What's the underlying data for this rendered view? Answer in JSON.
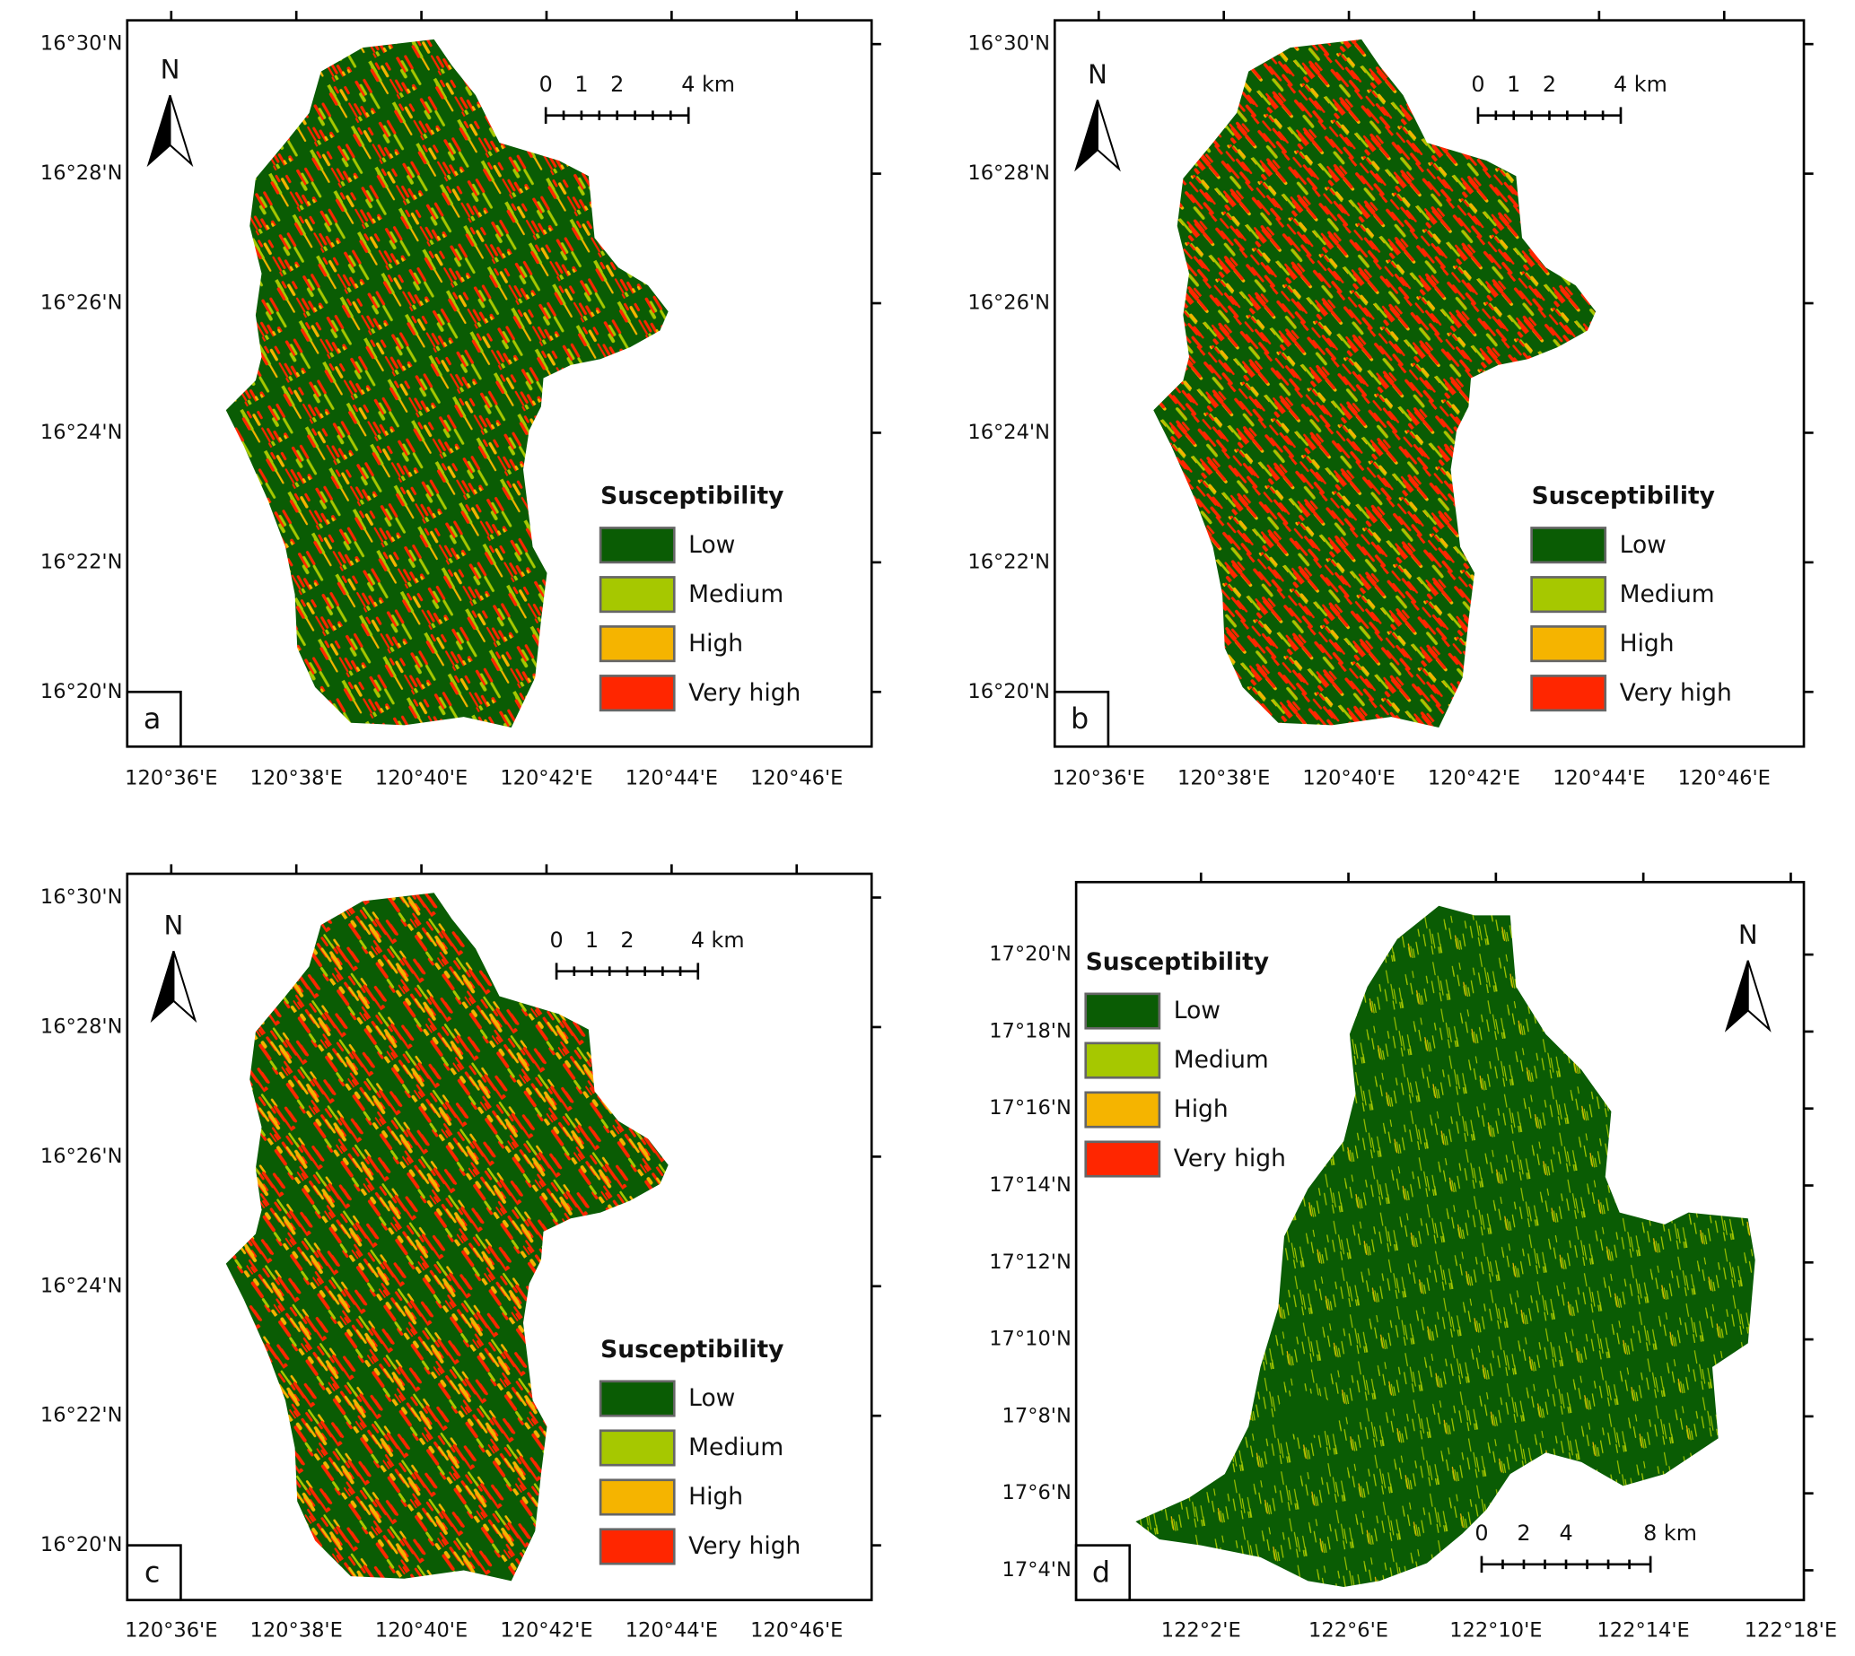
{
  "panels": [
    {
      "label": "a",
      "north": "N",
      "lat_labels": [
        "16°30'N",
        "16°28'N",
        "16°26'N",
        "16°24'N",
        "16°22'N",
        "16°20'N"
      ],
      "lon_labels": [
        "120°36'E",
        "120°38'E",
        "120°40'E",
        "120°42'E",
        "120°44'E",
        "120°46'E"
      ],
      "scale_labels": [
        "0",
        "1",
        "2",
        "4 km"
      ],
      "legend": {
        "title": "Susceptibility",
        "items": [
          {
            "label": "Low",
            "color": "#0a5c04"
          },
          {
            "label": "Medium",
            "color": "#a6c800"
          },
          {
            "label": "High",
            "color": "#f5b400"
          },
          {
            "label": "Very high",
            "color": "#ff2600"
          }
        ]
      }
    },
    {
      "label": "b",
      "north": "N",
      "lat_labels": [
        "16°30'N",
        "16°28'N",
        "16°26'N",
        "16°24'N",
        "16°22'N",
        "16°20'N"
      ],
      "lon_labels": [
        "120°36'E",
        "120°38'E",
        "120°40'E",
        "120°42'E",
        "120°44'E",
        "120°46'E"
      ],
      "scale_labels": [
        "0",
        "1",
        "2",
        "4 km"
      ],
      "legend": {
        "title": "Susceptibility",
        "items": [
          {
            "label": "Low",
            "color": "#0a5c04"
          },
          {
            "label": "Medium",
            "color": "#a6c800"
          },
          {
            "label": "High",
            "color": "#f5b400"
          },
          {
            "label": "Very high",
            "color": "#ff2600"
          }
        ]
      }
    },
    {
      "label": "c",
      "north": "N",
      "lat_labels": [
        "16°30'N",
        "16°28'N",
        "16°26'N",
        "16°24'N",
        "16°22'N",
        "16°20'N"
      ],
      "lon_labels": [
        "120°36'E",
        "120°38'E",
        "120°40'E",
        "120°42'E",
        "120°44'E",
        "120°46'E"
      ],
      "scale_labels": [
        "0",
        "1",
        "2",
        "4 km"
      ],
      "legend": {
        "title": "Susceptibility",
        "items": [
          {
            "label": "Low",
            "color": "#0a5c04"
          },
          {
            "label": "Medium",
            "color": "#a6c800"
          },
          {
            "label": "High",
            "color": "#f5b400"
          },
          {
            "label": "Very high",
            "color": "#ff2600"
          }
        ]
      }
    },
    {
      "label": "d",
      "north": "N",
      "lat_labels": [
        "17°20'N",
        "17°18'N",
        "17°16'N",
        "17°14'N",
        "17°12'N",
        "17°10'N",
        "17°8'N",
        "17°6'N",
        "17°4'N"
      ],
      "lon_labels": [
        "122°2'E",
        "122°6'E",
        "122°10'E",
        "122°14'E",
        "122°18'E"
      ],
      "scale_labels": [
        "0",
        "2",
        "4",
        "8 km"
      ],
      "legend": {
        "title": "Susceptibility",
        "items": [
          {
            "label": "Low",
            "color": "#0a5c04"
          },
          {
            "label": "Medium",
            "color": "#a6c800"
          },
          {
            "label": "High",
            "color": "#f5b400"
          },
          {
            "label": "Very high",
            "color": "#ff2600"
          }
        ]
      }
    }
  ]
}
